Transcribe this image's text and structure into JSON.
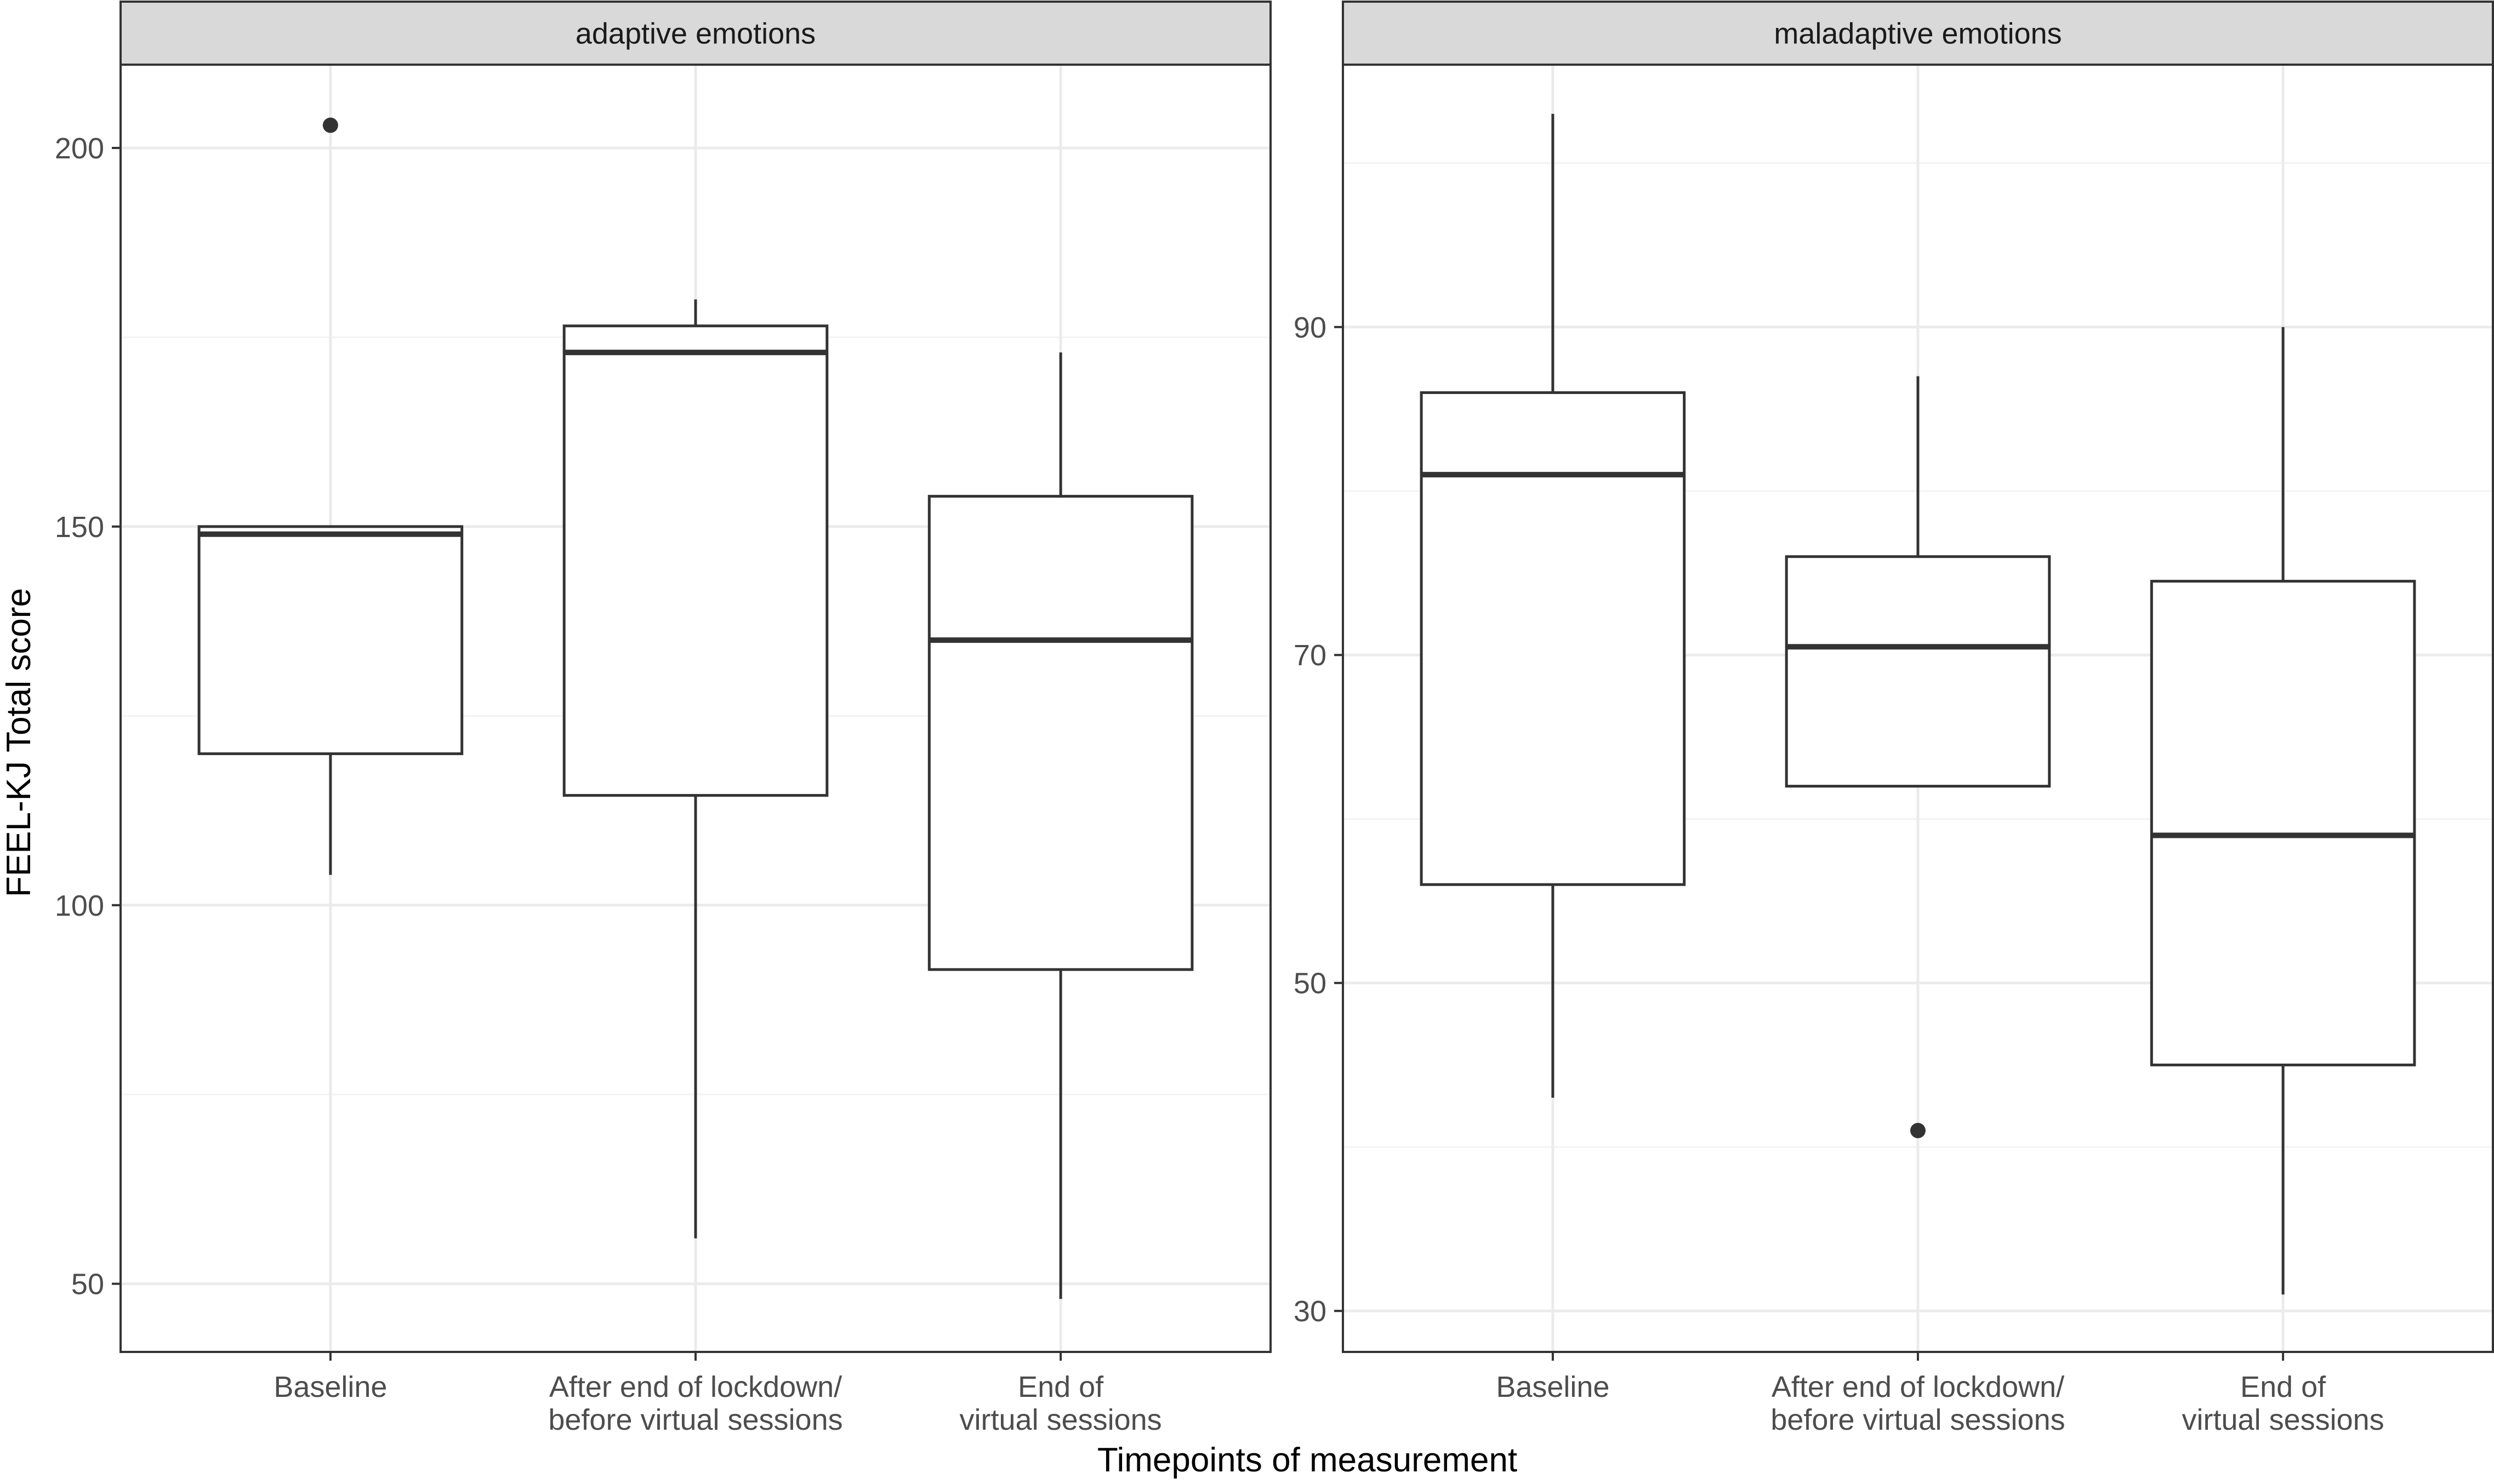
{
  "chart_data": [
    {
      "type": "box",
      "strip_title": "adaptive emotions",
      "categories": [
        "Baseline",
        "After end of lockdown/\nbefore virtual sessions",
        "End of\nvirtual sessions"
      ],
      "ylim": [
        41,
        211
      ],
      "yticks": [
        50,
        100,
        150,
        200
      ],
      "grid": true,
      "boxes": [
        {
          "whisker_low": 104,
          "q1": 120,
          "median": 149,
          "q3": 150,
          "whisker_high": 150,
          "outliers": [
            203
          ]
        },
        {
          "whisker_low": 56,
          "q1": 114.5,
          "median": 173,
          "q3": 176.5,
          "whisker_high": 180,
          "outliers": []
        },
        {
          "whisker_low": 48,
          "q1": 91.5,
          "median": 135,
          "q3": 154,
          "whisker_high": 173,
          "outliers": []
        }
      ]
    },
    {
      "type": "box",
      "strip_title": "maladaptive emotions",
      "categories": [
        "Baseline",
        "After end of lockdown/\nbefore virtual sessions",
        "End of\nvirtual sessions"
      ],
      "ylim": [
        27.5,
        106
      ],
      "yticks": [
        30,
        50,
        70,
        90
      ],
      "grid": true,
      "boxes": [
        {
          "whisker_low": 43,
          "q1": 56,
          "median": 81,
          "q3": 86,
          "whisker_high": 103,
          "outliers": []
        },
        {
          "whisker_low": 62,
          "q1": 62,
          "median": 70.5,
          "q3": 76,
          "whisker_high": 87,
          "outliers": [
            41
          ]
        },
        {
          "whisker_low": 31,
          "q1": 45,
          "median": 59,
          "q3": 74.5,
          "whisker_high": 90,
          "outliers": []
        }
      ]
    }
  ],
  "ylabel": "FEEL-KJ Total score",
  "xlabel": "Timepoints of measurement",
  "colors": {
    "strip_fill": "#d9d9d9",
    "frame": "#333333",
    "grid_major": "#ebebeb",
    "grid_minor": "#f3f3f3",
    "box_line": "#333333",
    "tick_text": "#4d4d4d"
  }
}
